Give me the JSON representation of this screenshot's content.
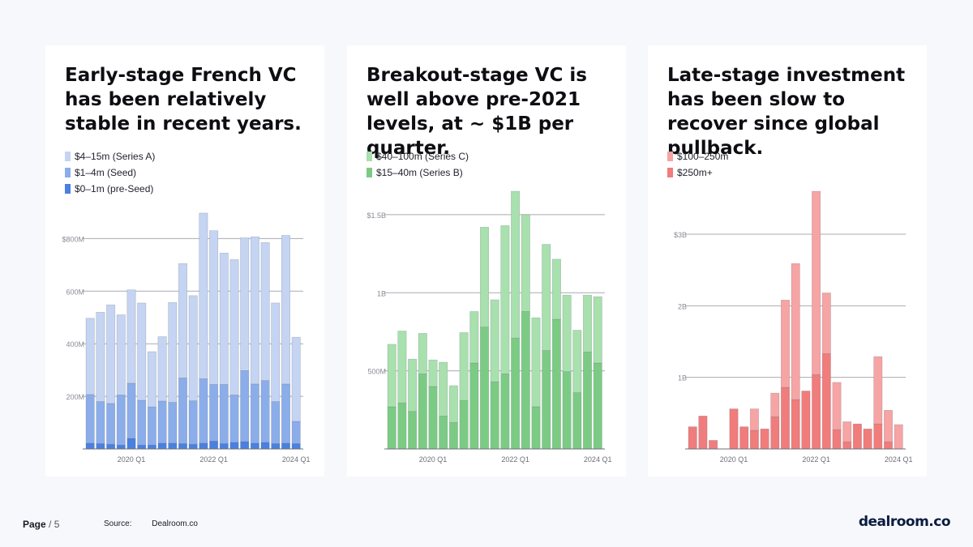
{
  "charts": [
    {
      "title": "Early-stage French VC has been relatively stable in recent years.",
      "legend": [
        {
          "label": "$4–15m (Series A)",
          "color": "#c4d4f2"
        },
        {
          "label": "$1–4m (Seed)",
          "color": "#8badea"
        },
        {
          "label": "$0–1m (pre-Seed)",
          "color": "#4a80e0"
        }
      ]
    },
    {
      "title": "Breakout-stage VC is well above pre-2021 levels, at ~ $1B per quarter.",
      "legend": [
        {
          "label": "$40–100m (Series C)",
          "color": "#a8e0ae"
        },
        {
          "label": "$15–40m (Series B)",
          "color": "#7ccb84"
        }
      ]
    },
    {
      "title": "Late-stage investment has been slow to recover since global pullback.",
      "legend": [
        {
          "label": "$100–250m",
          "color": "#f6a4a4"
        },
        {
          "label": "$250m+",
          "color": "#f07c7c"
        }
      ]
    }
  ],
  "chart_data": [
    {
      "type": "bar",
      "stacked": true,
      "title": "Early-stage French VC has been relatively stable in recent years.",
      "unit": "$M",
      "ylim": [
        0,
        980
      ],
      "yticks": [
        {
          "v": 200,
          "label": "200M"
        },
        {
          "v": 400,
          "label": "400M"
        },
        {
          "v": 600,
          "label": "600M"
        },
        {
          "v": 800,
          "label": "$800M"
        }
      ],
      "xticks": [
        {
          "i": 4,
          "label": "2020 Q1"
        },
        {
          "i": 12,
          "label": "2022 Q1"
        },
        {
          "i": 20,
          "label": "2024 Q1"
        }
      ],
      "series": [
        {
          "name": "$0–1m (pre-Seed)",
          "color": "#4a80e0",
          "values": [
            22,
            20,
            18,
            15,
            40,
            15,
            15,
            22,
            22,
            20,
            18,
            22,
            30,
            20,
            25,
            28,
            22,
            25,
            20,
            22,
            20
          ]
        },
        {
          "name": "$1–4m (Seed)",
          "color": "#8badea",
          "values": [
            185,
            160,
            155,
            190,
            210,
            170,
            145,
            160,
            155,
            250,
            165,
            245,
            215,
            225,
            180,
            270,
            225,
            235,
            160,
            225,
            85
          ]
        },
        {
          "name": "$4–15m (Series A)",
          "color": "#c4d4f2",
          "values": [
            290,
            340,
            375,
            305,
            355,
            370,
            210,
            245,
            380,
            435,
            400,
            630,
            585,
            500,
            515,
            505,
            560,
            525,
            375,
            565,
            320
          ]
        }
      ]
    },
    {
      "type": "bar",
      "stacked": true,
      "title": "Breakout-stage VC is well above pre-2021 levels, at ~ $1B per quarter.",
      "unit": "$M",
      "ylim": [
        0,
        1650
      ],
      "yticks": [
        {
          "v": 500,
          "label": "500M"
        },
        {
          "v": 1000,
          "label": "1B"
        },
        {
          "v": 1500,
          "label": "$1.5B"
        }
      ],
      "xticks": [
        {
          "i": 4,
          "label": "2020 Q1"
        },
        {
          "i": 12,
          "label": "2022 Q1"
        },
        {
          "i": 20,
          "label": "2024 Q1"
        }
      ],
      "series": [
        {
          "name": "$15–40m (Series B)",
          "color": "#7ccb84",
          "values": [
            270,
            295,
            240,
            480,
            400,
            210,
            170,
            310,
            550,
            780,
            430,
            480,
            710,
            880,
            270,
            630,
            830,
            495,
            360,
            620,
            550
          ]
        },
        {
          "name": "$40–100m (Series C)",
          "color": "#a8e0ae",
          "values": [
            400,
            460,
            335,
            260,
            170,
            345,
            235,
            435,
            330,
            640,
            525,
            950,
            940,
            620,
            570,
            680,
            385,
            490,
            400,
            365,
            425
          ]
        }
      ]
    },
    {
      "type": "bar",
      "stacked": true,
      "title": "Late-stage investment has been slow to recover since global pullback.",
      "unit": "$M",
      "ylim": [
        0,
        3600
      ],
      "yticks": [
        {
          "v": 1000,
          "label": "1B"
        },
        {
          "v": 2000,
          "label": "2B"
        },
        {
          "v": 3000,
          "label": "$3B"
        }
      ],
      "xticks": [
        {
          "i": 4,
          "label": "2020 Q1"
        },
        {
          "i": 12,
          "label": "2022 Q1"
        },
        {
          "i": 20,
          "label": "2024 Q1"
        }
      ],
      "series": [
        {
          "name": "$250m+",
          "color": "#f07c7c",
          "values": [
            310,
            460,
            120,
            0,
            560,
            310,
            260,
            280,
            450,
            860,
            690,
            810,
            1040,
            1330,
            270,
            100,
            350,
            280,
            350,
            100,
            0
          ]
        },
        {
          "name": "$100–250m",
          "color": "#f6a4a4",
          "values": [
            0,
            0,
            0,
            0,
            0,
            0,
            300,
            0,
            330,
            1220,
            1900,
            0,
            2560,
            850,
            660,
            280,
            0,
            0,
            940,
            440,
            340
          ]
        }
      ]
    }
  ],
  "footer": {
    "page_label": "Page",
    "page_number": "/ 5",
    "source_label": "Source:",
    "source_value": "Dealroom.co",
    "logo": "dealroom.co"
  }
}
